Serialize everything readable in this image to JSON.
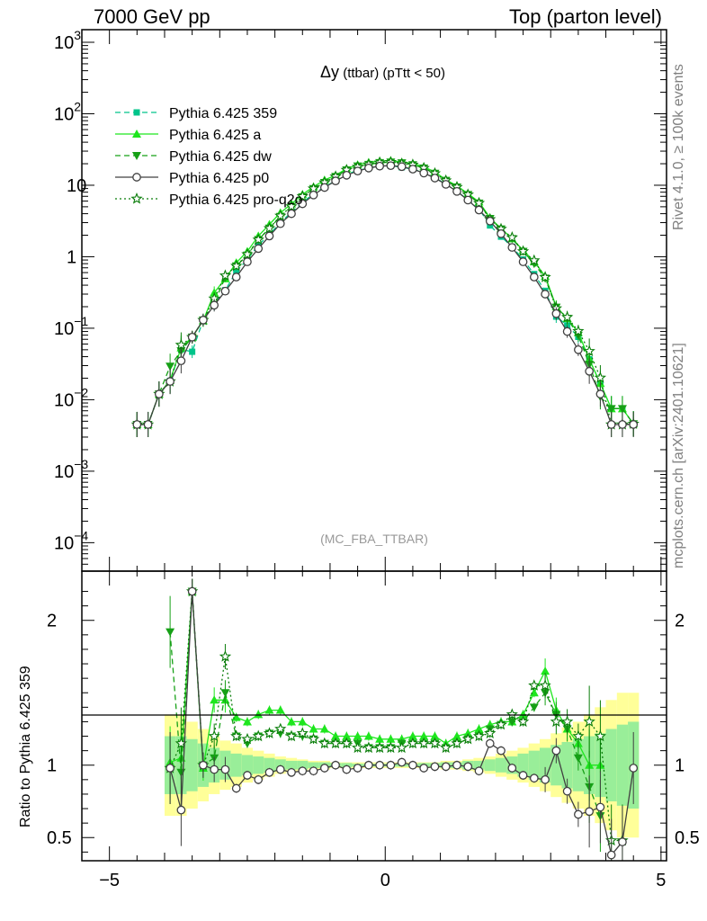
{
  "header": {
    "energy": "7000 GeV pp",
    "process": "Top (parton level)"
  },
  "side_labels": {
    "rivet": "Rivet 4.1.0, ≥ 100k events",
    "mcplots": "mcplots.cern.ch [arXiv:2401.10621]"
  },
  "colors": {
    "c359": "#00c48a",
    "ca": "#1ee61e",
    "cdw": "#16a016",
    "cp0": "#404040",
    "cq2o": "#0a7d0a",
    "band_yellow": "#ffff99",
    "band_green": "#99ee99",
    "watermark": "#999999"
  },
  "chart_data": [
    {
      "type": "line",
      "panel": "main",
      "title_symbol": "Δy",
      "title_rest": " (ttbar) (pTtt < 50)",
      "watermark": "(MC_FBA_TTBAR)",
      "xlim": [
        -5.5,
        5.1
      ],
      "ylim": [
        4e-05,
        1500
      ],
      "yscale": "log",
      "yticks": [
        {
          "v": 0.0001,
          "m": "10",
          "e": "−4"
        },
        {
          "v": 0.001,
          "m": "10",
          "e": "−3"
        },
        {
          "v": 0.01,
          "m": "10",
          "e": "−2"
        },
        {
          "v": 0.1,
          "m": "10",
          "e": "−1"
        },
        {
          "v": 1,
          "m": "1",
          "e": ""
        },
        {
          "v": 10,
          "m": "10",
          "e": ""
        },
        {
          "v": 100,
          "m": "10",
          "e": "2"
        },
        {
          "v": 1000,
          "m": "10",
          "e": "3"
        }
      ],
      "legend": [
        {
          "name": "Pythia 6.425 359",
          "color": "#00c48a",
          "marker": "square",
          "dash": "6,4"
        },
        {
          "name": "Pythia 6.425 a",
          "color": "#1ee61e",
          "marker": "triangle",
          "dash": ""
        },
        {
          "name": "Pythia 6.425 dw",
          "color": "#16a016",
          "marker": "tridown",
          "dash": "6,4"
        },
        {
          "name": "Pythia 6.425 p0",
          "color": "#404040",
          "marker": "circle",
          "dash": ""
        },
        {
          "name": "Pythia 6.425 pro-q2o",
          "color": "#0a7d0a",
          "marker": "star",
          "dash": "2,3"
        }
      ],
      "x": [
        -4.5,
        -4.3,
        -4.1,
        -3.9,
        -3.7,
        -3.5,
        -3.3,
        -3.1,
        -2.9,
        -2.7,
        -2.5,
        -2.3,
        -2.1,
        -1.9,
        -1.7,
        -1.5,
        -1.3,
        -1.1,
        -0.9,
        -0.7,
        -0.5,
        -0.3,
        -0.1,
        0.1,
        0.3,
        0.5,
        0.7,
        0.9,
        1.1,
        1.3,
        1.5,
        1.7,
        1.9,
        2.1,
        2.3,
        2.5,
        2.7,
        2.9,
        3.1,
        3.3,
        3.5,
        3.7,
        3.9,
        4.1,
        4.3,
        4.5
      ],
      "p0": [
        0.0045,
        0.0045,
        0.012,
        0.018,
        0.035,
        0.075,
        0.13,
        0.21,
        0.33,
        0.52,
        0.85,
        1.3,
        1.95,
        2.9,
        4.0,
        5.5,
        7.3,
        9.3,
        11.5,
        13.8,
        15.8,
        17.4,
        18.5,
        18.8,
        18.2,
        16.8,
        14.8,
        12.6,
        10.3,
        8.2,
        6.2,
        4.5,
        3.15,
        2.1,
        1.35,
        0.85,
        0.52,
        0.3,
        0.16,
        0.09,
        0.05,
        0.025,
        0.012,
        0.0045,
        0.0045,
        0.0045
      ]
    },
    {
      "type": "line",
      "panel": "ratio",
      "ylabel": "Ratio to Pythia 6.425 359",
      "xlim": [
        -5.5,
        5.1
      ],
      "ylim": [
        0.34,
        2.34
      ],
      "xticks": [
        -5,
        0,
        5
      ],
      "xticklabels": [
        "−5",
        "0",
        "5"
      ],
      "yticks": [
        0.5,
        1,
        2
      ],
      "yticklabels": [
        "0.5",
        "1",
        "2"
      ],
      "x": [
        -3.9,
        -3.7,
        -3.5,
        -3.3,
        -3.1,
        -2.9,
        -2.7,
        -2.5,
        -2.3,
        -2.1,
        -1.9,
        -1.7,
        -1.5,
        -1.3,
        -1.1,
        -0.9,
        -0.7,
        -0.5,
        -0.3,
        -0.1,
        0.1,
        0.3,
        0.5,
        0.7,
        0.9,
        1.1,
        1.3,
        1.5,
        1.7,
        1.9,
        2.1,
        2.3,
        2.5,
        2.7,
        2.9,
        3.1,
        3.3,
        3.5,
        3.7,
        3.9,
        4.1,
        4.3,
        4.5
      ],
      "band_yellow": [
        0.65,
        0.65,
        0.7,
        0.75,
        0.8,
        0.83,
        0.85,
        0.88,
        0.9,
        0.92,
        0.94,
        0.95,
        0.96,
        0.97,
        0.97,
        0.98,
        0.98,
        0.98,
        0.98,
        0.98,
        0.98,
        0.98,
        0.98,
        0.98,
        0.98,
        0.97,
        0.97,
        0.96,
        0.95,
        0.94,
        0.92,
        0.9,
        0.88,
        0.85,
        0.82,
        0.78,
        0.74,
        0.7,
        0.65,
        0.6,
        0.55,
        0.5,
        0.5
      ],
      "band_green": [
        0.8,
        0.8,
        0.82,
        0.85,
        0.88,
        0.9,
        0.92,
        0.93,
        0.94,
        0.95,
        0.96,
        0.97,
        0.97,
        0.98,
        0.98,
        0.985,
        0.985,
        0.99,
        0.99,
        0.99,
        0.99,
        0.99,
        0.99,
        0.985,
        0.985,
        0.98,
        0.98,
        0.97,
        0.97,
        0.96,
        0.95,
        0.94,
        0.92,
        0.9,
        0.88,
        0.86,
        0.84,
        0.82,
        0.8,
        0.78,
        0.75,
        0.72,
        0.7
      ],
      "series": [
        {
          "name": "Pythia 6.425 a",
          "color": "#1ee61e",
          "values": [
            1.02,
            1.05,
            2.2,
            0.98,
            1.45,
            1.45,
            1.33,
            1.3,
            1.35,
            1.38,
            1.38,
            1.3,
            1.3,
            1.25,
            1.25,
            1.2,
            1.2,
            1.2,
            1.2,
            1.18,
            1.18,
            1.18,
            1.2,
            1.2,
            1.2,
            1.15,
            1.2,
            1.22,
            1.25,
            1.28,
            1.3,
            1.3,
            1.35,
            1.5,
            1.65,
            1.38,
            1.25,
            1.15,
            1.0,
            1.0,
            null,
            null,
            null
          ]
        },
        {
          "name": "Pythia 6.425 dw",
          "color": "#16a016",
          "values": [
            1.92,
            0.95,
            2.2,
            1.0,
            1.05,
            1.5,
            1.2,
            1.15,
            1.2,
            1.22,
            1.22,
            1.2,
            1.2,
            1.18,
            1.15,
            1.15,
            1.15,
            1.15,
            1.12,
            1.12,
            1.12,
            1.15,
            1.15,
            1.15,
            1.15,
            1.12,
            1.15,
            1.18,
            1.2,
            1.25,
            1.28,
            1.3,
            1.3,
            1.4,
            1.5,
            1.35,
            1.25,
            1.05,
            0.85,
            0.65,
            null,
            null,
            null
          ]
        },
        {
          "name": "Pythia 6.425 pro-q2o",
          "color": "#0a7d0a",
          "values": [
            0.98,
            1.15,
            2.2,
            1.0,
            1.2,
            1.75,
            1.2,
            1.18,
            1.2,
            1.22,
            1.25,
            1.2,
            1.22,
            1.18,
            1.15,
            1.15,
            1.15,
            1.12,
            1.12,
            1.12,
            1.12,
            1.12,
            1.15,
            1.15,
            1.15,
            1.12,
            1.15,
            1.18,
            1.2,
            1.22,
            1.28,
            1.35,
            1.3,
            1.55,
            1.55,
            1.3,
            1.3,
            1.2,
            1.3,
            1.2,
            0.48,
            0.48,
            null
          ]
        },
        {
          "name": "Pythia 6.425 p0",
          "color": "#404040",
          "values": [
            0.98,
            0.69,
            2.2,
            1.0,
            0.97,
            0.97,
            0.84,
            0.93,
            0.9,
            0.95,
            0.97,
            0.95,
            0.96,
            0.96,
            0.98,
            1.0,
            0.97,
            0.98,
            1.0,
            1.0,
            1.0,
            1.02,
            1.0,
            0.98,
            0.99,
            0.99,
            1.0,
            0.99,
            0.96,
            1.15,
            1.1,
            0.98,
            0.93,
            0.91,
            0.9,
            1.1,
            0.82,
            0.66,
            0.68,
            0.71,
            0.38,
            0.47,
            0.98
          ]
        }
      ]
    }
  ]
}
